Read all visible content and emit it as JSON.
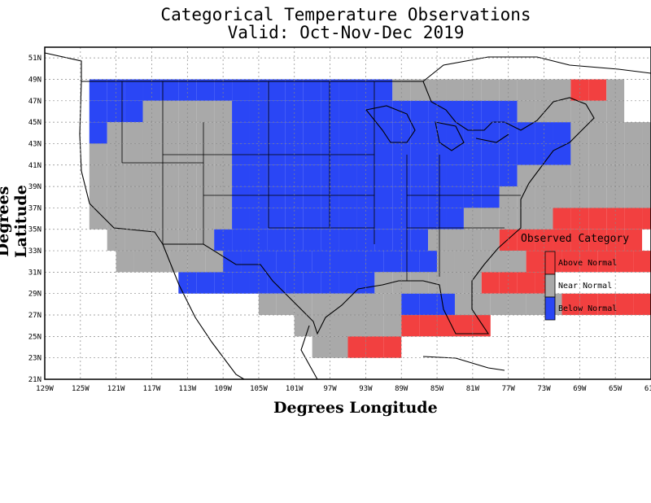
{
  "title_line1": "Categorical Temperature Observations",
  "title_line2": "Valid: Oct-Nov-Dec 2019",
  "xlabel": "Degrees Longitude",
  "ylabel": "Degrees Latitude",
  "x_ticks": [
    "129W",
    "125W",
    "121W",
    "117W",
    "113W",
    "109W",
    "105W",
    "101W",
    "97W",
    "93W",
    "89W",
    "85W",
    "81W",
    "77W",
    "73W",
    "69W",
    "65W",
    "61W"
  ],
  "y_ticks": [
    "21N",
    "23N",
    "25N",
    "27N",
    "29N",
    "31N",
    "33N",
    "35N",
    "37N",
    "39N",
    "41N",
    "43N",
    "45N",
    "47N",
    "49N",
    "51N"
  ],
  "legend": {
    "title": "Observed Category",
    "items": [
      {
        "label": "Above Normal",
        "color": "#f24040"
      },
      {
        "label": "Near Normal",
        "color": "#a9a9a9"
      },
      {
        "label": "Below Normal",
        "color": "#2a46f5"
      }
    ]
  },
  "colors": {
    "above": "#f24040",
    "near": "#a9a9a9",
    "below": "#2a46f5"
  },
  "chart_data": {
    "type": "heatmap",
    "title": "Categorical Temperature Observations",
    "subtitle": "Valid: Oct-Nov-Dec 2019",
    "xlabel": "Degrees Longitude",
    "ylabel": "Degrees Latitude",
    "xlim": [
      -129,
      -61
    ],
    "ylim": [
      21,
      52
    ],
    "grid": true,
    "legend_position": "right",
    "cell_size_degrees": 2,
    "categories": {
      "A": "Above Normal",
      "N": "Near Normal",
      "B": "Below Normal"
    },
    "cells": [
      {
        "lat": 48,
        "lon_start": -124,
        "codes": "BBBBBBBBBBBBBBBBBNNNNNNNNNNAAN"
      },
      {
        "lat": 46,
        "lon_start": -124,
        "codes": "BBBNNNNNBBBBBBBBBBBBBBBBNNNNNN"
      },
      {
        "lat": 44,
        "lon_start": -124,
        "codes": "BNNNNNNNBBBBBBBBBBBBBBBBBBBNNNNN"
      },
      {
        "lat": 42,
        "lon_start": -124,
        "codes": "NNNNNNNNBBBBBBBBBBBBBBBBBBBNNNNNNNNN"
      },
      {
        "lat": 40,
        "lon_start": -124,
        "codes": "NNNNNNNNBBBBBBBBBBBBBBBBNNNNNNNNNNNN"
      },
      {
        "lat": 38,
        "lon_start": -124,
        "codes": "NNNNNNNNBBBBBBBBBBBBBBBNNNNNNNNNNN"
      },
      {
        "lat": 36,
        "lon_start": -124,
        "codes": "NNNNNNNNBBBBBBBBBBBBBNNNNNAAAAAAAA"
      },
      {
        "lat": 34,
        "lon_start": -122,
        "codes": "NNNNNNBBBBBBBBBBBBNNNNAAAAAAAA"
      },
      {
        "lat": 32,
        "lon_start": -121,
        "codes": "NNNNNNBBBBBBBBBBBBNNNNNAAAAAAA"
      },
      {
        "lat": 30,
        "lon_start": -114,
        "codes": "BBBBBBBBBBBNNNNNNAAAA"
      },
      {
        "lat": 28,
        "lon_start": -105,
        "codes": "NNNNNNNNBBBNNNNNNAAAAA"
      },
      {
        "lat": 26,
        "lon_start": -101,
        "codes": "NNNNNNAAAAA"
      },
      {
        "lat": 24,
        "lon_start": -99,
        "codes": "NNAAA"
      }
    ]
  }
}
